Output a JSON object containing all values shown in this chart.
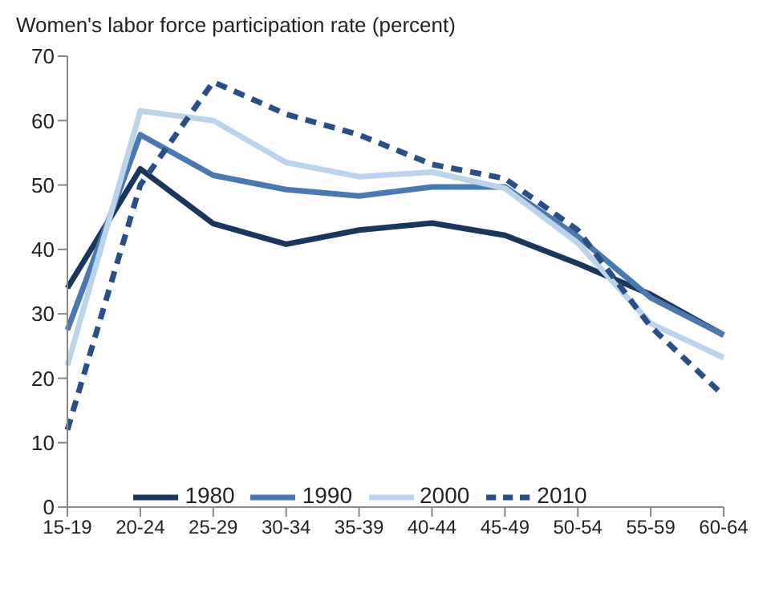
{
  "chart_data": {
    "type": "line",
    "title": "Women's labor force participation rate (percent)",
    "categories": [
      "15-19",
      "20-24",
      "25-29",
      "30-34",
      "35-39",
      "40-44",
      "45-49",
      "50-54",
      "55-59",
      "60-64"
    ],
    "series": [
      {
        "name": "1980",
        "color": "#1b365d",
        "values": [
          34,
          52.5,
          44,
          40.8,
          43,
          44.1,
          42.2,
          37.8,
          33,
          26.7
        ]
      },
      {
        "name": "1990",
        "color": "#4a78b0",
        "values": [
          27.5,
          57.8,
          51.5,
          49.3,
          48.3,
          49.7,
          49.7,
          42,
          32.5,
          26.7
        ]
      },
      {
        "name": "2000",
        "color": "#bcd3ec",
        "values": [
          22,
          61.5,
          60,
          53.5,
          51.3,
          52,
          49.5,
          41,
          28.5,
          23.2
        ]
      },
      {
        "name": "2010",
        "color": "#2a4f86",
        "line_style": "dashed",
        "values": [
          12,
          50,
          66,
          61,
          57.8,
          53.2,
          51,
          43,
          28,
          17.3
        ]
      }
    ],
    "ylim": [
      0,
      70
    ],
    "yticks": [
      0,
      10,
      20,
      30,
      40,
      50,
      60,
      70
    ],
    "grid": false,
    "legend": "bottom",
    "marker": "none",
    "line_style": "solid"
  }
}
